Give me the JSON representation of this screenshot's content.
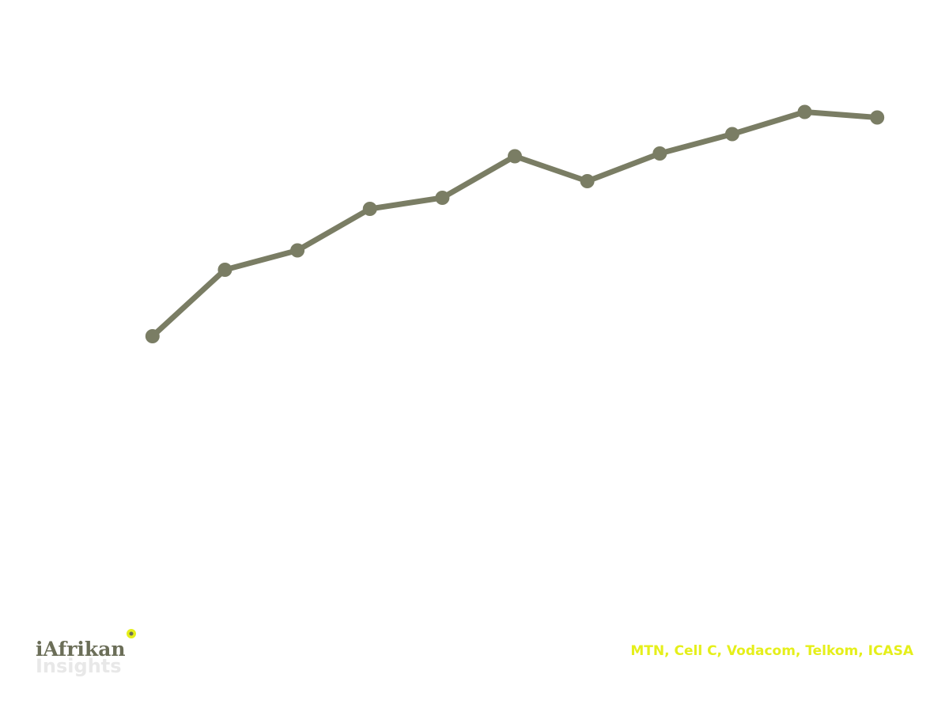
{
  "chart_data": {
    "type": "line",
    "categories": [
      null,
      null,
      null,
      null,
      null,
      null,
      null,
      null,
      null,
      null,
      null
    ],
    "series": [
      {
        "color": "#7a7d64",
        "values": [
          45,
          57,
          60.5,
          68,
          70,
          77.5,
          73,
          78,
          81.5,
          85.5,
          84.5
        ]
      }
    ],
    "ylim": [
      0,
      100
    ]
  },
  "footer": {
    "brand": "iAfrikan",
    "brand_sub": "Insights",
    "source": "MTN, Cell C, Vodacom, Telkom, ICASA"
  }
}
